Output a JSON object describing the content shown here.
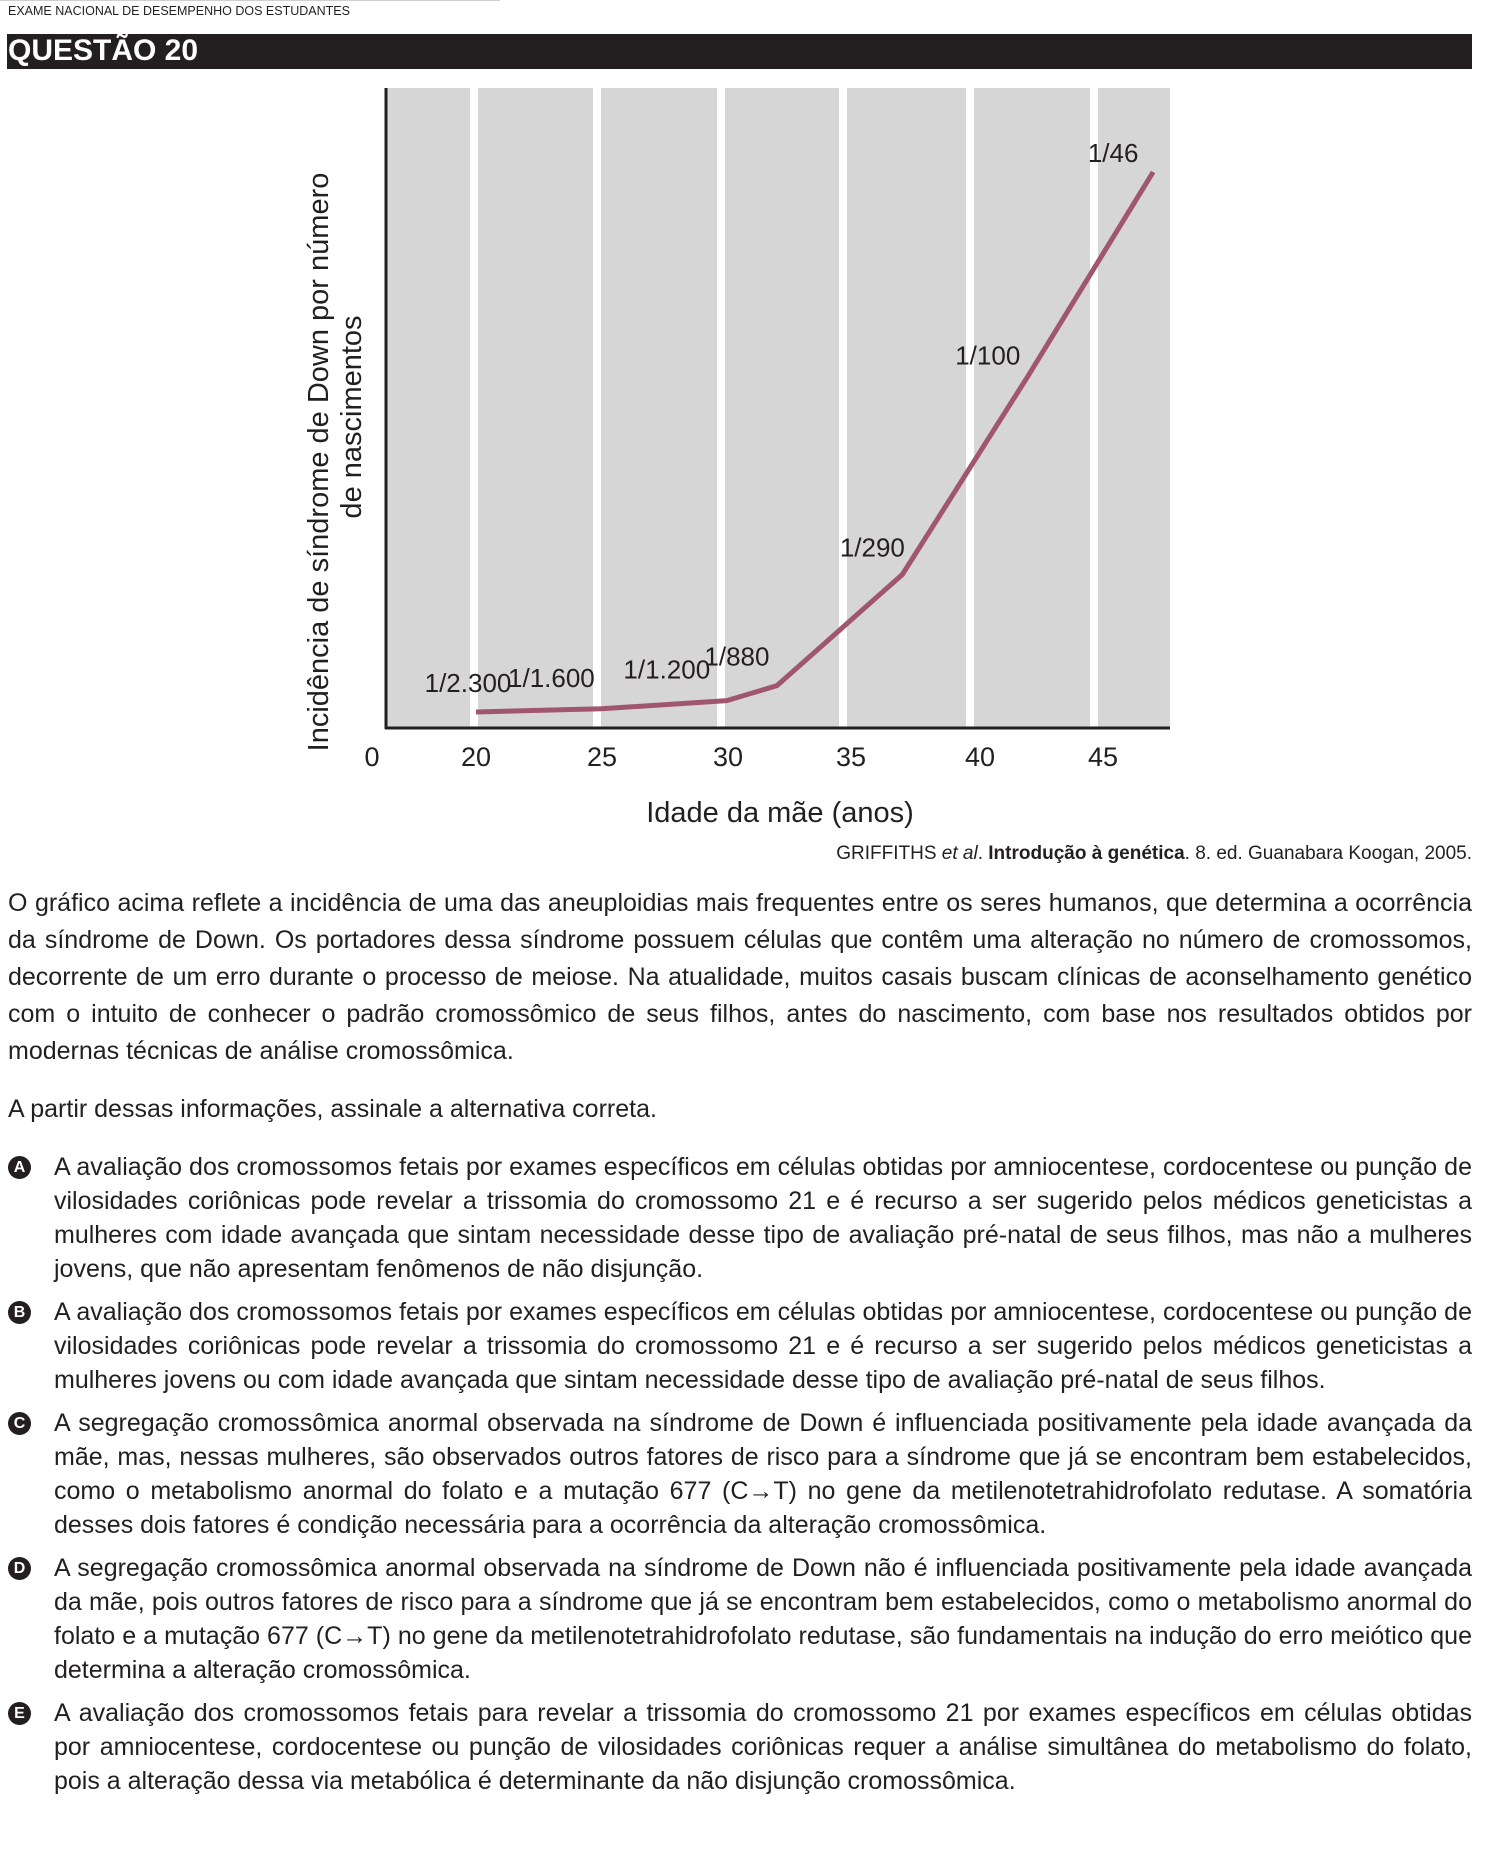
{
  "header": {
    "exam_name": "EXAME NACIONAL DE DESEMPENHO DOS ESTUDANTES",
    "question_title": "QUESTÃO 20"
  },
  "chart_data": {
    "type": "line",
    "title": "",
    "ylabel_line1": "Incidência de síndrome de Down por número",
    "ylabel_line2": "de nascimentos",
    "xlabel": "Idade da mãe (anos)",
    "x_ticks": [
      "0",
      "20",
      "25",
      "30",
      "35",
      "40",
      "45"
    ],
    "points": [
      {
        "x": 20,
        "label": "1/2.300",
        "value": 0.000435
      },
      {
        "x": 25,
        "label": "1/1.600",
        "value": 0.000625
      },
      {
        "x": 30,
        "label": "1/1.200",
        "value": 0.000833
      },
      {
        "x": 32,
        "label": "1/880",
        "value": 0.001136
      },
      {
        "x": 37,
        "label": "1/290",
        "value": 0.003448
      },
      {
        "x": 42,
        "label": "1/100",
        "value": 0.01
      },
      {
        "x": 47,
        "label": "1/46",
        "value": 0.021739
      }
    ],
    "line_color": "#a0566f",
    "background_color": "#d6d6d6",
    "grid": "vertical white bands"
  },
  "citation": {
    "authors": "GRIFFITHS ",
    "etal": "et al",
    "after_etal": ". ",
    "book_title": "Introdução à genética",
    "rest": ". 8. ed. Guanabara Koogan, 2005."
  },
  "body": {
    "paragraph1": "O gráfico acima reflete a incidência de uma das aneuploidias mais frequentes entre os seres humanos, que determina a ocorrência da síndrome de Down. Os portadores dessa síndrome possuem células que contêm uma alteração no número de cromossomos, decorrente de um erro durante o processo de meiose. Na atualidade, muitos casais buscam clínicas de aconselhamento genético com o intuito de conhecer o padrão cromossômico de seus filhos, antes do nascimento, com base nos resultados obtidos por modernas técnicas de análise cromossômica.",
    "instruction": "A partir dessas informações, assinale a alternativa correta."
  },
  "options": [
    {
      "letter": "A",
      "text": "A avaliação dos cromossomos fetais por exames específicos em células obtidas por amniocentese, cordocentese ou punção de vilosidades coriônicas pode revelar a trissomia do cromossomo 21 e é recurso a ser sugerido pelos médicos geneticistas a mulheres com idade avançada que sintam necessidade desse tipo de avaliação pré-natal de seus filhos, mas não a mulheres jovens, que não apresentam fenômenos de não disjunção."
    },
    {
      "letter": "B",
      "text": "A avaliação dos cromossomos fetais por exames específicos em células obtidas por amniocentese, cordocentese ou punção de vilosidades coriônicas pode revelar a trissomia do cromossomo 21 e é recurso a ser sugerido pelos médicos geneticistas a mulheres jovens ou com idade avançada que sintam necessidade desse tipo de avaliação pré-natal de seus filhos."
    },
    {
      "letter": "C",
      "text": "A segregação cromossômica anormal observada na síndrome de Down é influenciada positivamente pela idade avançada da mãe, mas, nessas mulheres, são observados outros fatores de risco para a síndrome que já se encontram bem estabelecidos, como o metabolismo anormal do folato e a mutação 677 (C→T) no gene da metilenotetrahidrofolato redutase. A somatória desses dois fatores é condição necessária para a ocorrência da alteração cromossômica."
    },
    {
      "letter": "D",
      "text": "A segregação cromossômica anormal observada na síndrome de Down não é influenciada positivamente pela idade avançada da mãe, pois outros fatores de risco para a síndrome que já se encontram bem estabelecidos, como o metabolismo anormal do folato e a mutação 677 (C→T) no gene da metilenotetrahidrofolato redutase, são fundamentais na indução do erro meiótico que determina a alteração cromossômica."
    },
    {
      "letter": "E",
      "text": "A avaliação dos cromossomos fetais para revelar a trissomia do cromossomo 21 por exames específicos em células obtidas por amniocentese, cordocentese ou punção de vilosidades coriônicas requer a análise simultânea do metabolismo do folato, pois a alteração dessa via metabólica é determinante da não disjunção cromossômica."
    }
  ]
}
